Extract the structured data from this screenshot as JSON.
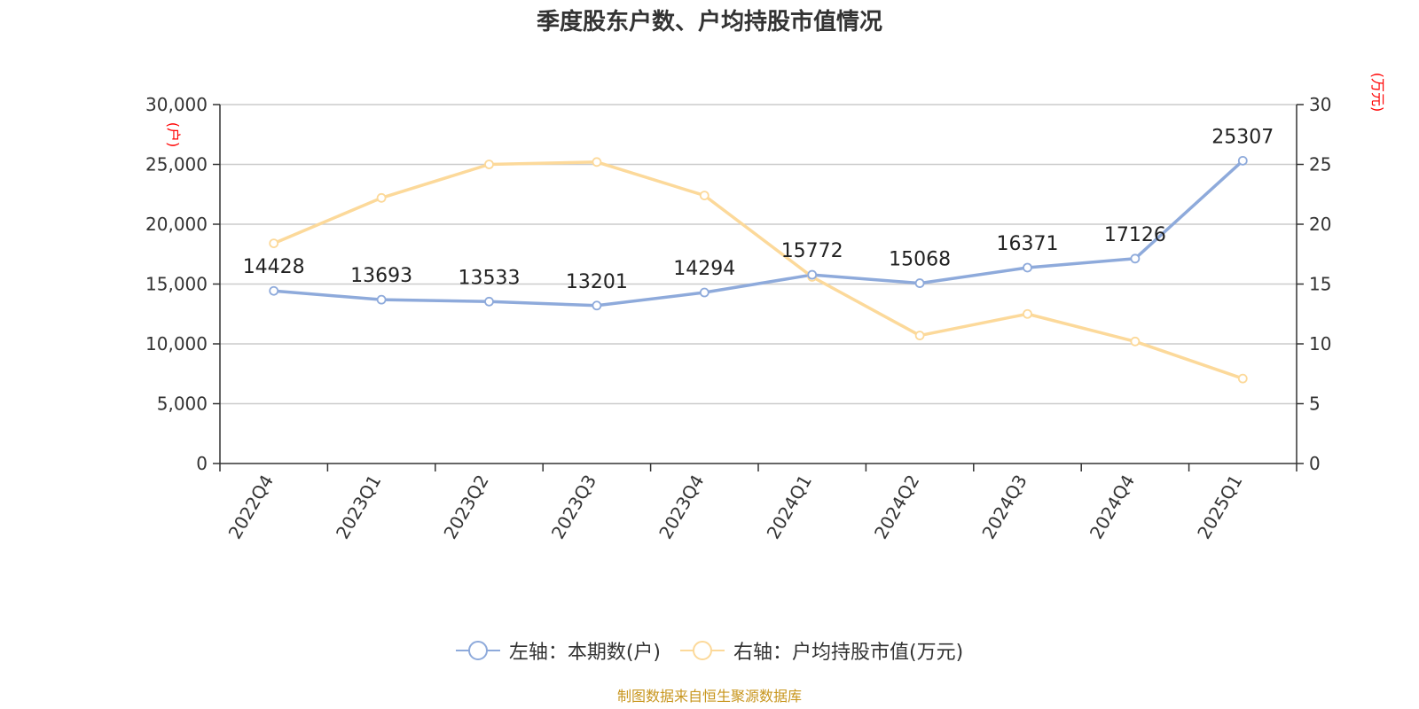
{
  "title": "季度股东户数、户均持股市值情况",
  "source": "制图数据来自恒生聚源数据库",
  "left_unit": "(户)",
  "right_unit": "(万元)",
  "legend": [
    {
      "label": "左轴：本期数(户)",
      "color": "#8eaadb"
    },
    {
      "label": "右轴：户均持股市值(万元)",
      "color": "#fcd99a"
    }
  ],
  "chart_data": {
    "type": "line",
    "categories": [
      "2022Q4",
      "2023Q1",
      "2023Q2",
      "2023Q3",
      "2023Q4",
      "2024Q1",
      "2024Q2",
      "2024Q3",
      "2024Q4",
      "2025Q1"
    ],
    "series": [
      {
        "name": "左轴：本期数(户)",
        "axis": "left",
        "color": "#8eaadb",
        "values": [
          14428,
          13693,
          13533,
          13201,
          14294,
          15772,
          15068,
          16371,
          17126,
          25307
        ]
      },
      {
        "name": "右轴：户均持股市值(万元)",
        "axis": "right",
        "color": "#fcd99a",
        "values": [
          18.4,
          22.2,
          25.0,
          25.2,
          22.4,
          15.6,
          10.7,
          12.5,
          10.2,
          7.1
        ]
      }
    ],
    "left_axis": {
      "ylim": [
        0,
        30000
      ],
      "ticks": [
        "0",
        "5,000",
        "10,000",
        "15,000",
        "20,000",
        "25,000",
        "30,000"
      ]
    },
    "right_axis": {
      "ylim": [
        0,
        30
      ],
      "ticks": [
        "0",
        "5",
        "10",
        "15",
        "20",
        "25",
        "30"
      ]
    },
    "grid": true,
    "legend_position": "bottom"
  }
}
